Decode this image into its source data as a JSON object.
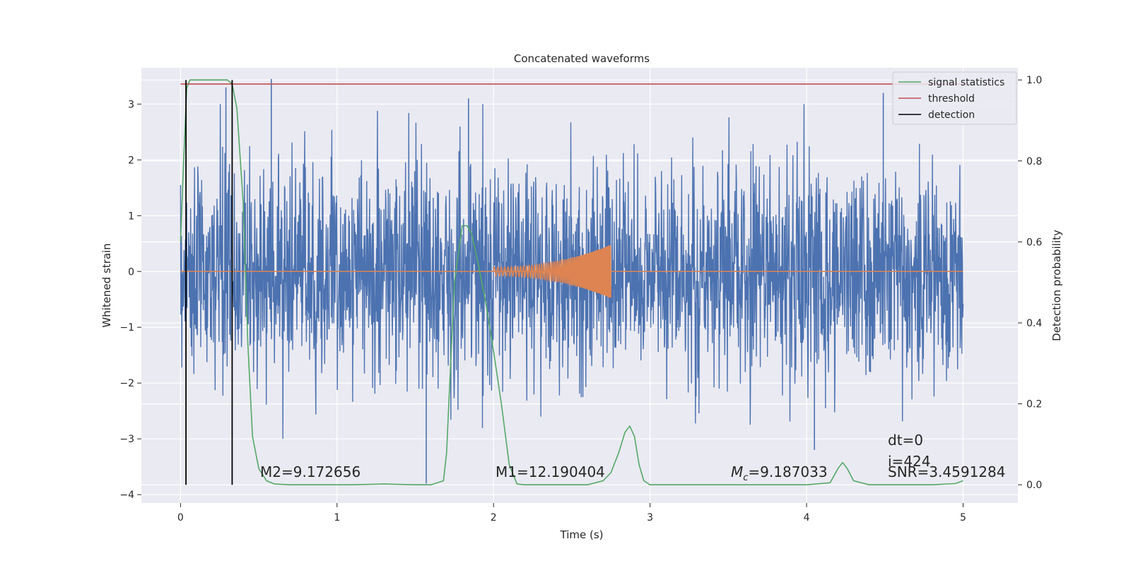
{
  "chart_data": {
    "type": "line",
    "title": "Concatenated waveforms",
    "xlabel": "Time (s)",
    "ylabel": "Whitened strain",
    "y2label": "Detection probability",
    "xlim": [
      -0.25,
      5.35
    ],
    "ylim": [
      -4.15,
      3.65
    ],
    "y2lim": [
      -0.045,
      1.03
    ],
    "xticks": [
      0,
      1,
      2,
      3,
      4,
      5
    ],
    "xtick_labels": [
      "0",
      "1",
      "2",
      "3",
      "4",
      "5"
    ],
    "yticks": [
      -4,
      -3,
      -2,
      -1,
      0,
      1,
      2,
      3
    ],
    "ytick_labels": [
      "−4",
      "−3",
      "−2",
      "−1",
      "0",
      "1",
      "2",
      "3"
    ],
    "y2ticks": [
      0.0,
      0.2,
      0.4,
      0.6,
      0.8,
      1.0
    ],
    "y2tick_labels": [
      "0.0",
      "0.2",
      "0.4",
      "0.6",
      "0.8",
      "1.0"
    ],
    "grid": true,
    "legend_position": "top-right",
    "colors": {
      "background": "#eaeaf2",
      "grid": "#ffffff",
      "strain": "#4c72b0",
      "template": "#dd8452",
      "signal_statistics": "#55a868",
      "threshold": "#c44e52",
      "detection": "#000000"
    },
    "series": [
      {
        "name": "strain (noisy whitened data)",
        "axis": "left",
        "x_range": [
          0,
          5
        ],
        "envelope": {
          "typical_low": -1.8,
          "typical_high": 1.9
        },
        "peaks": [
          [
            0.58,
            3.45
          ],
          [
            1.84,
            3.1
          ],
          [
            1.57,
            -3.8
          ],
          [
            4.05,
            -3.2
          ],
          [
            0.29,
            3.3
          ],
          [
            4.49,
            3.2
          ]
        ]
      },
      {
        "name": "template waveform",
        "axis": "left",
        "x_range": [
          2.0,
          2.75
        ],
        "amplitude_start": 0.08,
        "amplitude_end": 0.48
      },
      {
        "name": "signal statistics",
        "axis": "right",
        "x": [
          0.0,
          0.02,
          0.04,
          0.06,
          0.1,
          0.15,
          0.2,
          0.25,
          0.3,
          0.33,
          0.36,
          0.4,
          0.43,
          0.46,
          0.5,
          0.55,
          0.6,
          0.7,
          0.9,
          1.1,
          1.3,
          1.5,
          1.6,
          1.68,
          1.7,
          1.72,
          1.75,
          1.8,
          1.83,
          1.86,
          1.9,
          1.95,
          2.0,
          2.05,
          2.1,
          2.15,
          2.2,
          2.4,
          2.6,
          2.7,
          2.75,
          2.8,
          2.84,
          2.87,
          2.9,
          2.93,
          2.96,
          3.0,
          3.2,
          3.5,
          4.0,
          4.15,
          4.2,
          4.23,
          4.26,
          4.3,
          4.4,
          4.6,
          4.8,
          4.95,
          5.0
        ],
        "y": [
          0.6,
          0.8,
          0.98,
          1.0,
          1.0,
          1.0,
          1.0,
          1.0,
          1.0,
          0.99,
          0.93,
          0.7,
          0.35,
          0.12,
          0.04,
          0.01,
          0.002,
          0.0,
          0.0,
          0.0,
          0.002,
          0.0,
          0.0,
          0.01,
          0.08,
          0.25,
          0.5,
          0.64,
          0.64,
          0.62,
          0.55,
          0.45,
          0.33,
          0.2,
          0.05,
          0.002,
          0.0,
          0.0,
          0.0,
          0.01,
          0.03,
          0.08,
          0.13,
          0.145,
          0.12,
          0.05,
          0.01,
          0.0,
          0.0,
          0.0,
          0.0,
          0.005,
          0.04,
          0.055,
          0.04,
          0.01,
          0.0,
          0.0,
          0.0,
          0.003,
          0.01
        ]
      },
      {
        "name": "threshold",
        "axis": "right",
        "x": [
          0,
          5
        ],
        "y": [
          0.99,
          0.99
        ]
      },
      {
        "name": "detection",
        "axis": "right",
        "vertical_lines_x": [
          0.035,
          0.33
        ],
        "y_range": [
          0.0,
          1.0
        ]
      }
    ],
    "legend": [
      "signal statistics",
      "threshold",
      "detection"
    ],
    "annotations": {
      "m2": {
        "text": "M2=9.172656",
        "x": 0.5,
        "y": 0.02
      },
      "m1": {
        "text": "M1=12.190404",
        "x": 2.0,
        "y": 0.02
      },
      "mc_symbol": "M",
      "mc_sub": "c",
      "mc_value": "=9.187033",
      "mc_pos": {
        "x": 3.5,
        "y": 0.02
      },
      "dt": {
        "text": "dt=0",
        "x": 4.5,
        "y": 0.1
      },
      "i": {
        "text": "i=424",
        "x": 4.5,
        "y": 0.06
      },
      "snr": {
        "text": "SNR=3.4591284",
        "x": 4.5,
        "y": 0.02
      }
    }
  }
}
